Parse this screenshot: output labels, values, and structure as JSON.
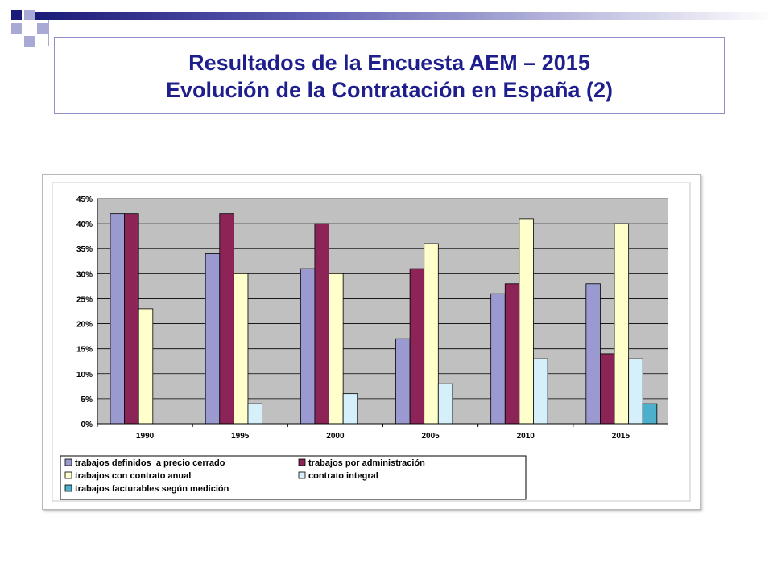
{
  "slide": {
    "title_line1": "Resultados de la Encuesta AEM – 2015",
    "title_line2": "Evolución de la Contratación en España (2)"
  },
  "colors": {
    "title": "#1e1e8c",
    "plot_background": "#c0c0c0",
    "deco_navy": "#1a1a78",
    "deco_light": "#a9a9d6"
  },
  "chart_data": {
    "type": "bar",
    "categories": [
      "1990",
      "1995",
      "2000",
      "2005",
      "2010",
      "2015"
    ],
    "ylim": [
      0,
      45
    ],
    "yticks": [
      0,
      5,
      10,
      15,
      20,
      25,
      30,
      35,
      40,
      45
    ],
    "ytick_labels": [
      "0%",
      "5%",
      "10%",
      "15%",
      "20%",
      "25%",
      "30%",
      "35%",
      "40%",
      "45%"
    ],
    "grid": true,
    "legend_position": "bottom",
    "series": [
      {
        "name": "trabajos definidos  a precio cerrado",
        "color": "#9a9ad0",
        "values": [
          42,
          34,
          31,
          17,
          26,
          28
        ]
      },
      {
        "name": "trabajos por administración",
        "color": "#8c2457",
        "values": [
          42,
          42,
          40,
          31,
          28,
          14
        ]
      },
      {
        "name": "trabajos con contrato anual",
        "color": "#ffffcc",
        "values": [
          23,
          30,
          30,
          36,
          41,
          40
        ]
      },
      {
        "name": "contrato integral",
        "color": "#d6f0fb",
        "values": [
          0,
          4,
          6,
          8,
          13,
          13
        ]
      },
      {
        "name": "trabajos facturables según medición",
        "color": "#4cb0cc",
        "values": [
          0,
          0,
          0,
          0,
          0,
          4
        ]
      }
    ]
  }
}
